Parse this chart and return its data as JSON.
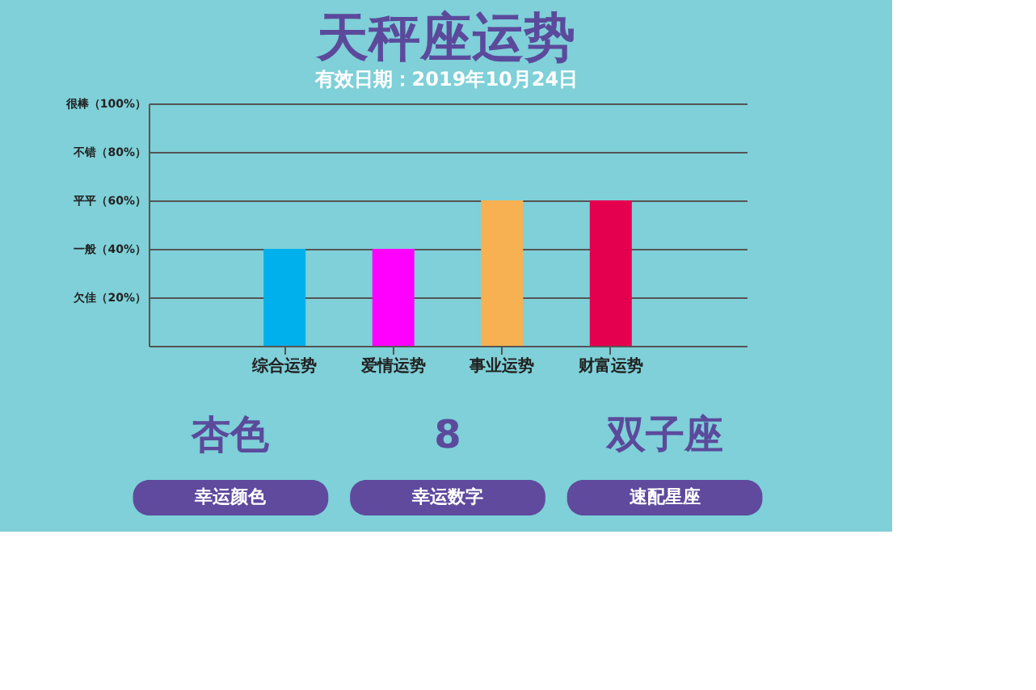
{
  "chart_data": {
    "type": "bar",
    "title": "天秤座运势",
    "subtitle": "有效日期：2019年10月24日",
    "categories": [
      "综合运势",
      "爱情运势",
      "事业运势",
      "财富运势"
    ],
    "values": [
      40,
      40,
      60,
      60
    ],
    "colors": [
      "#00b0ec",
      "#ff00ff",
      "#f7b152",
      "#e4004f"
    ],
    "ylim": [
      0,
      100
    ],
    "yticks": [
      {
        "value": 20,
        "label": "欠佳（20%）"
      },
      {
        "value": 40,
        "label": "一般（40%）"
      },
      {
        "value": 60,
        "label": "平平（60%）"
      },
      {
        "value": 80,
        "label": "不错（80%）"
      },
      {
        "value": 100,
        "label": "很棒（100%）"
      }
    ],
    "grid": "y",
    "annotations": [
      "杏色",
      "幸运颜色",
      "8",
      "幸运数字",
      "双子座",
      "速配星座"
    ]
  }
}
